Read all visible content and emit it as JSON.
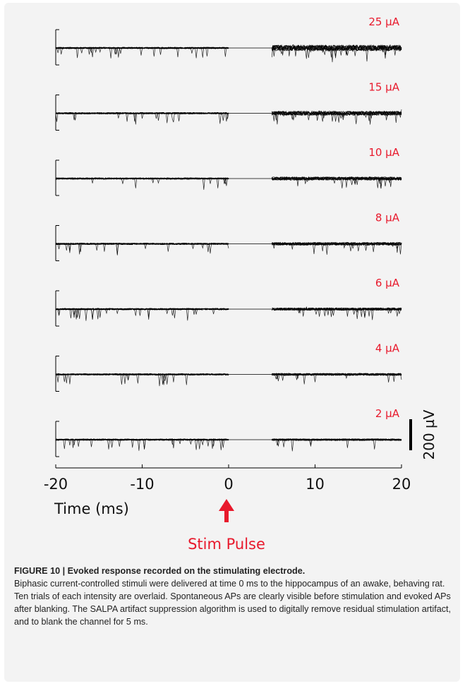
{
  "caption": {
    "title": "FIGURE 10 | Evoked response recorded on the stimulating electrode.",
    "body": "Biphasic current-controlled stimuli were delivered at time 0 ms to the hippocampus of an awake, behaving rat. Ten trials of each intensity are overlaid. Spontaneous APs are clearly visible before stimulation and evoked APs after blanking. The SALPA artifact suppression algorithm is used to digitally remove residual stimulation artifact, and to blank the channel for 5 ms."
  },
  "annotations": {
    "stim_label": "Stim Pulse",
    "scale_bar_label": "200 µV"
  },
  "colors": {
    "accent": "#e8192c",
    "trace": "#000000",
    "panel_background": "#f3f3f3"
  },
  "chart_data": {
    "type": "line",
    "xlabel": "Time (ms)",
    "xlim": [
      -20,
      20
    ],
    "x_ticks": [
      "-20",
      "-10",
      "0",
      "10",
      "20"
    ],
    "blank_interval_ms": [
      0,
      5
    ],
    "stimulus_time_ms": 0,
    "trials_per_intensity": 10,
    "scale_bar_uV": 200,
    "panels": [
      {
        "label": "25 µA",
        "intensity_uA": 25
      },
      {
        "label": "15 µA",
        "intensity_uA": 15
      },
      {
        "label": "10 µA",
        "intensity_uA": 10
      },
      {
        "label": "8 µA",
        "intensity_uA": 8
      },
      {
        "label": "6 µA",
        "intensity_uA": 6
      },
      {
        "label": "4 µA",
        "intensity_uA": 4
      },
      {
        "label": "2 µA",
        "intensity_uA": 2
      }
    ]
  }
}
